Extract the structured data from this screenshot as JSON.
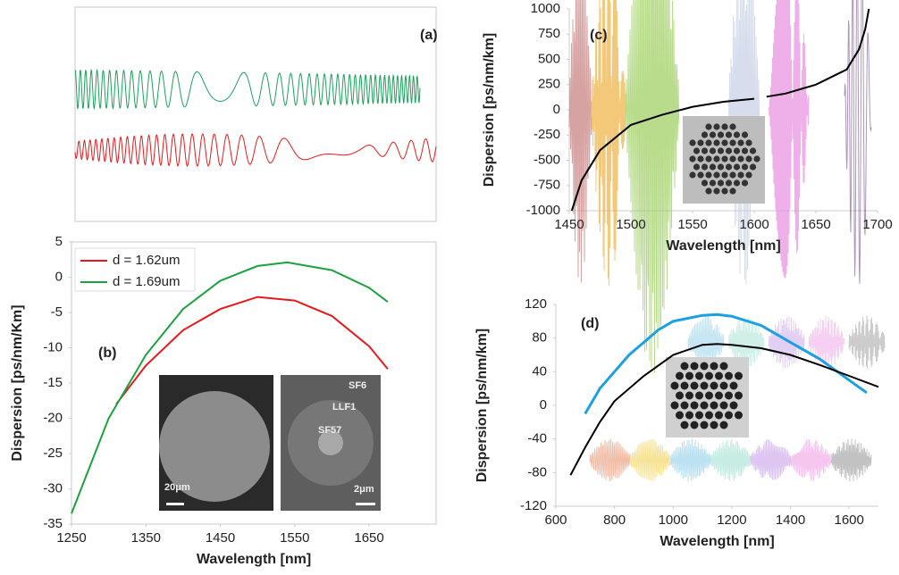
{
  "chart_data": [
    {
      "type": "waveform",
      "label": "(a)"
    },
    {
      "type": "line",
      "label": "(b)",
      "x_label": "Wavelength [nm]",
      "y_label": "Dispersion [ps/nm/Km]",
      "xlim": [
        1250,
        1740
      ],
      "xticks": [
        1250,
        1350,
        1450,
        1550,
        1650
      ],
      "ylim": [
        -35,
        5
      ],
      "yticks": [
        -35,
        -30,
        -25,
        -20,
        -15,
        -10,
        -5,
        0,
        5
      ],
      "legend": "upper left",
      "annotations": [
        "20μm",
        "2μm",
        "SF6",
        "LLF1",
        "SF57"
      ],
      "series": [
        {
          "name": "d = 1.62um",
          "color": "#e8191b",
          "x": [
            1310,
            1350,
            1400,
            1450,
            1500,
            1550,
            1600,
            1650,
            1675
          ],
          "values": [
            -18,
            -12.5,
            -7.5,
            -4.5,
            -2.8,
            -3.3,
            -5.5,
            -9.8,
            -13
          ]
        },
        {
          "name": "d = 1.69um",
          "color": "#1aa33c",
          "x": [
            1250,
            1300,
            1350,
            1400,
            1450,
            1500,
            1540,
            1600,
            1650,
            1675
          ],
          "values": [
            -33.5,
            -20,
            -11,
            -4.5,
            -0.5,
            1.6,
            2.1,
            1,
            -1.5,
            -3.5
          ]
        }
      ]
    },
    {
      "type": "line",
      "label": "(c)",
      "x_label": "Wavelength [nm]",
      "y_label": "Dispersion [ps/nm/km]",
      "xlim": [
        1450,
        1700
      ],
      "xticks": [
        1450,
        1500,
        1550,
        1600,
        1650,
        1700
      ],
      "ylim": [
        -1000,
        1000
      ],
      "yticks": [
        -1000,
        -750,
        -500,
        -250,
        0,
        250,
        500,
        750,
        1000
      ],
      "series": [
        {
          "color": "#000000",
          "x": [
            1452,
            1460,
            1475,
            1500,
            1525,
            1550,
            1575,
            1600,
            1605,
            1610,
            1625,
            1650,
            1675,
            1685,
            1690,
            1693
          ],
          "values": [
            -1000,
            -700,
            -400,
            -150,
            -50,
            30,
            80,
            110,
            null,
            130,
            160,
            250,
            400,
            600,
            800,
            1000
          ]
        }
      ]
    },
    {
      "type": "line",
      "label": "(d)",
      "x_label": "Wavelength [nm]",
      "y_label": "Dispersion [ps/nm/km]",
      "xlim": [
        600,
        1700
      ],
      "xticks": [
        600,
        800,
        1000,
        1200,
        1400,
        1600
      ],
      "ylim": [
        -120,
        120
      ],
      "yticks": [
        -120,
        -80,
        -40,
        0,
        40,
        80,
        120
      ],
      "series": [
        {
          "color": "#1ba1e2",
          "x": [
            700,
            750,
            800,
            850,
            900,
            950,
            1000,
            1100,
            1150,
            1200,
            1300,
            1400,
            1500,
            1600,
            1660
          ],
          "values": [
            -10,
            20,
            40,
            60,
            75,
            90,
            100,
            107,
            108,
            106,
            95,
            75,
            55,
            30,
            15
          ]
        },
        {
          "color": "#000000",
          "x": [
            650,
            700,
            750,
            800,
            900,
            1000,
            1100,
            1150,
            1200,
            1300,
            1400,
            1500,
            1600,
            1700
          ],
          "values": [
            -83,
            -50,
            -20,
            5,
            35,
            60,
            72,
            73,
            72,
            68,
            60,
            48,
            35,
            22
          ]
        }
      ]
    }
  ]
}
